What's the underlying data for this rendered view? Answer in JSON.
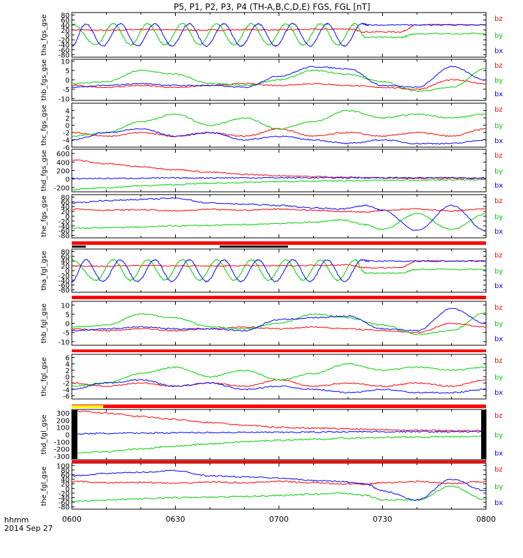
{
  "title": "P5, P1, P2, P3, P4 (TH-A,B,C,D,E) FGS, FGL [nT]",
  "colors": {
    "bx": "#0000ff",
    "by": "#00cc00",
    "bz": "#ff0000",
    "axis": "#000000",
    "flag_red": "#ff0000",
    "flag_yellow": "#ffff00"
  },
  "footer": {
    "time_label": "hhmm",
    "date_label": "2014 Sep 27"
  },
  "x_axis": {
    "tick_labels": [
      "0600",
      "0630",
      "0700",
      "0730",
      "0800"
    ],
    "range_minutes": [
      0,
      120
    ]
  },
  "chart_data": [
    {
      "type": "line",
      "ylabel": "tha_fgs_gse",
      "ylim": [
        -90,
        90
      ],
      "yticks": [
        80,
        60,
        40,
        20,
        0,
        -20,
        -40,
        -60,
        -80
      ],
      "series": [
        {
          "name": "bz",
          "x": [
            0,
            10,
            20,
            30,
            40,
            50,
            60,
            70,
            80,
            85,
            95,
            100,
            110,
            120
          ],
          "y": [
            20,
            18,
            22,
            20,
            19,
            21,
            20,
            22,
            24,
            12,
            12,
            40,
            40,
            40
          ]
        },
        {
          "name": "by",
          "x": [
            0,
            7,
            12,
            17,
            22,
            27,
            32,
            37,
            42,
            47,
            52,
            57,
            62,
            67,
            72,
            77,
            82,
            85,
            95,
            100,
            120
          ],
          "y": [
            45,
            -40,
            45,
            -40,
            45,
            -40,
            45,
            -40,
            45,
            -40,
            45,
            -40,
            45,
            -40,
            45,
            -40,
            45,
            -10,
            -10,
            5,
            5
          ]
        },
        {
          "name": "bx",
          "x": [
            0,
            4,
            9,
            14,
            19,
            24,
            29,
            34,
            39,
            44,
            49,
            54,
            59,
            64,
            69,
            74,
            79,
            84,
            86,
            100,
            120
          ],
          "y": [
            -45,
            45,
            -45,
            45,
            -45,
            45,
            -45,
            45,
            -45,
            45,
            -45,
            45,
            -45,
            45,
            -45,
            45,
            -45,
            45,
            40,
            40,
            40
          ]
        }
      ]
    },
    {
      "type": "line",
      "ylabel": "thb_fgs_gse",
      "ylim": [
        -11,
        11
      ],
      "yticks": [
        10,
        5,
        0,
        -5,
        -10
      ],
      "series": [
        {
          "name": "bz",
          "x": [
            0,
            10,
            20,
            30,
            40,
            50,
            60,
            70,
            80,
            90,
            100,
            110,
            120
          ],
          "y": [
            -3,
            -4,
            -3,
            -4,
            -3,
            -2,
            -3,
            -2,
            -3,
            -4,
            -5,
            0,
            -2
          ]
        },
        {
          "name": "by",
          "x": [
            0,
            10,
            20,
            30,
            40,
            50,
            60,
            70,
            80,
            90,
            100,
            110,
            120
          ],
          "y": [
            -2,
            -1,
            5,
            3,
            -2,
            -3,
            0,
            5,
            3,
            -1,
            -6,
            -4,
            6
          ]
        },
        {
          "name": "bx",
          "x": [
            0,
            10,
            20,
            30,
            40,
            50,
            60,
            70,
            80,
            90,
            100,
            110,
            120
          ],
          "y": [
            -4,
            -3,
            -2,
            -3,
            -3,
            -4,
            2,
            7,
            6,
            -3,
            -4,
            7,
            0
          ]
        }
      ]
    },
    {
      "type": "line",
      "ylabel": "thc_fgs_gse",
      "ylim": [
        -6,
        6
      ],
      "yticks": [
        4,
        2,
        0,
        -2,
        -4,
        -6
      ],
      "series": [
        {
          "name": "bz",
          "x": [
            0,
            10,
            20,
            30,
            40,
            50,
            60,
            70,
            80,
            90,
            100,
            110,
            120
          ],
          "y": [
            -2,
            -3,
            -2,
            -3,
            -2,
            -3,
            -1,
            -3,
            -2,
            -3,
            -2,
            -3,
            -1
          ]
        },
        {
          "name": "by",
          "x": [
            0,
            10,
            20,
            30,
            40,
            50,
            60,
            70,
            80,
            90,
            100,
            110,
            120
          ],
          "y": [
            -3,
            -2,
            1,
            3,
            0,
            2,
            -1,
            1,
            4,
            2,
            3,
            2,
            3
          ]
        },
        {
          "name": "bx",
          "x": [
            0,
            10,
            20,
            30,
            40,
            50,
            60,
            70,
            80,
            90,
            100,
            110,
            120
          ],
          "y": [
            -4,
            -2,
            -1,
            -3,
            -2,
            -4,
            -3,
            -4,
            -5,
            -4,
            -5,
            -5,
            -4
          ]
        }
      ]
    },
    {
      "type": "line",
      "ylabel": "thd_fgs_gse",
      "ylim": [
        -300,
        700
      ],
      "yticks": [
        600,
        400,
        200,
        0,
        -200
      ],
      "series": [
        {
          "name": "bz",
          "x": [
            0,
            10,
            20,
            30,
            40,
            50,
            60,
            70,
            80,
            90,
            100,
            110,
            120
          ],
          "y": [
            450,
            360,
            290,
            220,
            160,
            110,
            80,
            60,
            40,
            30,
            20,
            15,
            10
          ]
        },
        {
          "name": "by",
          "x": [
            0,
            10,
            20,
            30,
            40,
            50,
            60,
            70,
            80,
            90,
            100,
            110,
            120
          ],
          "y": [
            -250,
            -200,
            -160,
            -130,
            -100,
            -80,
            -60,
            -50,
            -40,
            -30,
            -25,
            -20,
            -15
          ]
        },
        {
          "name": "bx",
          "x": [
            0,
            10,
            20,
            30,
            40,
            50,
            60,
            70,
            80,
            90,
            100,
            110,
            120
          ],
          "y": [
            10,
            15,
            20,
            25,
            28,
            30,
            30,
            30,
            30,
            30,
            30,
            30,
            30
          ]
        }
      ]
    },
    {
      "type": "line",
      "ylabel": "the_fgs_gse",
      "ylim": [
        -90,
        90
      ],
      "yticks": [
        80,
        60,
        40,
        20,
        0,
        -20,
        -40,
        -60,
        -80
      ],
      "series": [
        {
          "name": "bz",
          "x": [
            0,
            10,
            20,
            30,
            40,
            50,
            60,
            70,
            78,
            85,
            90,
            100,
            110,
            120
          ],
          "y": [
            30,
            25,
            27,
            22,
            28,
            25,
            30,
            25,
            20,
            18,
            25,
            30,
            22,
            30
          ]
        },
        {
          "name": "by",
          "x": [
            0,
            10,
            20,
            30,
            40,
            50,
            60,
            70,
            78,
            85,
            90,
            100,
            110,
            120
          ],
          "y": [
            -50,
            -48,
            -45,
            -40,
            -38,
            -35,
            -30,
            -25,
            -15,
            -35,
            -55,
            10,
            -55,
            10
          ]
        },
        {
          "name": "bx",
          "x": [
            0,
            10,
            20,
            30,
            40,
            50,
            60,
            70,
            78,
            85,
            90,
            100,
            110,
            120
          ],
          "y": [
            55,
            65,
            70,
            75,
            55,
            50,
            45,
            35,
            30,
            45,
            25,
            -60,
            45,
            -60
          ]
        }
      ]
    },
    {
      "type": "line",
      "ylabel": "tha_fgl_gse",
      "ylim": [
        -90,
        90
      ],
      "yticks": [
        80,
        60,
        40,
        20,
        0,
        -20,
        -40,
        -60,
        -80
      ],
      "series": [
        {
          "name": "bz",
          "x": [
            0,
            10,
            20,
            30,
            40,
            50,
            60,
            70,
            80,
            85,
            95,
            100,
            110,
            120
          ],
          "y": [
            20,
            18,
            22,
            20,
            19,
            21,
            20,
            22,
            24,
            12,
            12,
            40,
            40,
            40
          ]
        },
        {
          "name": "by",
          "x": [
            0,
            7,
            12,
            17,
            22,
            27,
            32,
            37,
            42,
            47,
            52,
            57,
            62,
            67,
            72,
            77,
            82,
            85,
            95,
            100,
            120
          ],
          "y": [
            45,
            -40,
            45,
            -40,
            45,
            -40,
            45,
            -40,
            45,
            -40,
            45,
            -40,
            45,
            -40,
            45,
            -40,
            45,
            -10,
            -10,
            5,
            5
          ]
        },
        {
          "name": "bx",
          "x": [
            0,
            4,
            9,
            14,
            19,
            24,
            29,
            34,
            39,
            44,
            49,
            54,
            59,
            64,
            69,
            74,
            79,
            84,
            86,
            100,
            120
          ],
          "y": [
            -45,
            45,
            -45,
            45,
            -45,
            45,
            -45,
            45,
            -45,
            45,
            -45,
            45,
            -45,
            45,
            -45,
            45,
            -45,
            45,
            40,
            40,
            40
          ]
        }
      ]
    },
    {
      "type": "line",
      "ylabel": "thb_fgl_gse",
      "ylim": [
        -12,
        12
      ],
      "yticks": [
        10,
        5,
        0,
        -5,
        -10
      ],
      "series": [
        {
          "name": "bz",
          "x": [
            0,
            10,
            20,
            30,
            40,
            50,
            60,
            70,
            80,
            90,
            100,
            110,
            120
          ],
          "y": [
            -3,
            -4,
            -3,
            -4,
            -3,
            -2,
            -3,
            -2,
            -3,
            -4,
            -5,
            0,
            -2
          ]
        },
        {
          "name": "by",
          "x": [
            0,
            10,
            20,
            30,
            40,
            50,
            60,
            70,
            80,
            90,
            100,
            110,
            120
          ],
          "y": [
            -2,
            -1,
            5,
            3,
            -2,
            -3,
            0,
            5,
            3,
            -1,
            -6,
            -4,
            6
          ]
        },
        {
          "name": "bx",
          "x": [
            0,
            10,
            20,
            30,
            40,
            50,
            60,
            70,
            80,
            90,
            100,
            110,
            120
          ],
          "y": [
            -4,
            -3,
            -2,
            -3,
            -3,
            -4,
            2,
            3,
            4,
            -3,
            -4,
            8,
            0
          ]
        }
      ]
    },
    {
      "type": "line",
      "ylabel": "thc_fgl_gse",
      "ylim": [
        -7,
        7
      ],
      "yticks": [
        6,
        4,
        2,
        0,
        -2,
        -4,
        -6
      ],
      "series": [
        {
          "name": "bz",
          "x": [
            0,
            10,
            20,
            30,
            40,
            50,
            60,
            70,
            80,
            90,
            100,
            110,
            120
          ],
          "y": [
            -2,
            -3,
            -2,
            -3,
            -2,
            -3,
            -1,
            -3,
            -2,
            -3,
            -2,
            -3,
            -1
          ]
        },
        {
          "name": "by",
          "x": [
            0,
            10,
            20,
            30,
            40,
            50,
            60,
            70,
            80,
            90,
            100,
            110,
            120
          ],
          "y": [
            -3,
            -2,
            1,
            3,
            0,
            2,
            -1,
            1,
            4,
            2,
            3,
            2,
            3
          ]
        },
        {
          "name": "bx",
          "x": [
            0,
            10,
            20,
            30,
            40,
            50,
            60,
            70,
            80,
            90,
            100,
            110,
            120
          ],
          "y": [
            -4,
            -2,
            -1,
            -3,
            -2,
            -4,
            -3,
            -4,
            -5,
            -4,
            -5,
            -5,
            -4
          ]
        }
      ]
    },
    {
      "type": "line",
      "ylabel": "thd_fgl_gse",
      "ylim": [
        -350,
        350
      ],
      "yticks": [
        300,
        200,
        100,
        0,
        -100,
        -200,
        -300
      ],
      "series": [
        {
          "name": "bz",
          "x": [
            0,
            10,
            20,
            30,
            40,
            50,
            60,
            70,
            80,
            90,
            100,
            110,
            120
          ],
          "y": [
            330,
            300,
            250,
            210,
            170,
            130,
            100,
            90,
            80,
            70,
            60,
            55,
            50
          ]
        },
        {
          "name": "by",
          "x": [
            0,
            10,
            20,
            30,
            40,
            50,
            60,
            70,
            80,
            90,
            100,
            110,
            120
          ],
          "y": [
            -250,
            -240,
            -200,
            -160,
            -130,
            -100,
            -80,
            -65,
            -50,
            -40,
            -35,
            -30,
            -25
          ]
        },
        {
          "name": "bx",
          "x": [
            0,
            10,
            20,
            30,
            40,
            50,
            60,
            70,
            80,
            90,
            100,
            110,
            120
          ],
          "y": [
            10,
            15,
            20,
            25,
            28,
            30,
            30,
            35,
            40,
            40,
            40,
            40,
            40
          ]
        }
      ]
    },
    {
      "type": "line",
      "ylabel": "the_fgl_gse",
      "ylim": [
        -90,
        110
      ],
      "yticks": [
        100,
        80,
        60,
        40,
        20,
        0,
        -20,
        -40,
        -60,
        -80
      ],
      "series": [
        {
          "name": "bz",
          "x": [
            0,
            10,
            20,
            30,
            40,
            50,
            60,
            70,
            78,
            85,
            90,
            100,
            110,
            120
          ],
          "y": [
            30,
            25,
            27,
            22,
            28,
            25,
            30,
            25,
            20,
            18,
            25,
            30,
            22,
            30
          ]
        },
        {
          "name": "by",
          "x": [
            0,
            10,
            20,
            30,
            40,
            50,
            60,
            70,
            78,
            85,
            90,
            100,
            110,
            120
          ],
          "y": [
            -55,
            -50,
            -45,
            -40,
            -38,
            -35,
            -30,
            -25,
            -20,
            -30,
            -50,
            -50,
            10,
            -50
          ]
        },
        {
          "name": "bx",
          "x": [
            0,
            10,
            20,
            30,
            40,
            50,
            60,
            70,
            78,
            85,
            90,
            100,
            110,
            120
          ],
          "y": [
            55,
            65,
            70,
            78,
            55,
            50,
            45,
            35,
            30,
            20,
            -10,
            -50,
            40,
            -10
          ]
        }
      ]
    }
  ]
}
